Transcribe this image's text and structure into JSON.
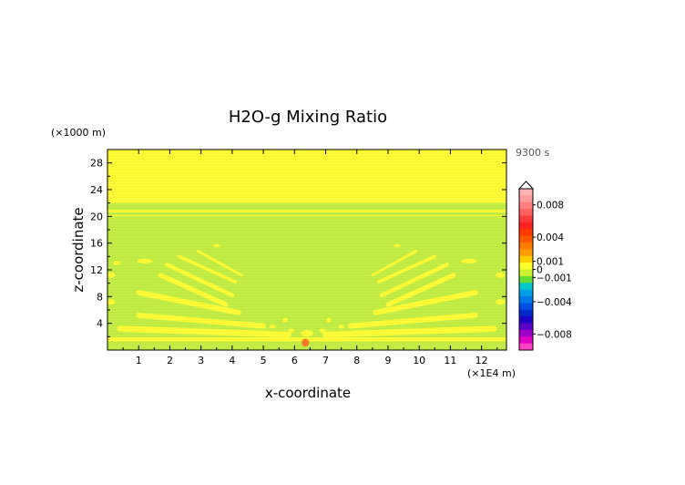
{
  "chart_data": {
    "type": "heatmap",
    "title": "H2O-g Mixing Ratio",
    "xlabel": "x-coordinate",
    "ylabel": "z-coordinate",
    "x_unit": "(×1E4 m)",
    "y_unit": "(×1000 m)",
    "time_label": "9300 s",
    "xlim": [
      0,
      12.8
    ],
    "ylim": [
      0,
      30
    ],
    "x_ticks": [
      "1",
      "2",
      "3",
      "4",
      "5",
      "6",
      "7",
      "8",
      "9",
      "10",
      "11",
      "12"
    ],
    "y_ticks": [
      "4",
      "8",
      "12",
      "16",
      "20",
      "24",
      "28"
    ],
    "colorbar": {
      "tick_labels": [
        "0.008",
        "0.004",
        "0.001",
        "0",
        "−0.001",
        "−0.004",
        "−0.008"
      ],
      "tick_values": [
        0.008,
        0.004,
        0.001,
        0,
        -0.001,
        -0.004,
        -0.008
      ],
      "range": [
        -0.01,
        0.01
      ],
      "levels": [
        {
          "value": 0.0095,
          "color": "#ffb3b3"
        },
        {
          "value": 0.0085,
          "color": "#ff9d9d"
        },
        {
          "value": 0.0075,
          "color": "#ff7f7f"
        },
        {
          "value": 0.0065,
          "color": "#ff6060"
        },
        {
          "value": 0.0055,
          "color": "#ff3a3a"
        },
        {
          "value": 0.0045,
          "color": "#ff2020"
        },
        {
          "value": 0.0035,
          "color": "#ff3b00"
        },
        {
          "value": 0.0025,
          "color": "#ff5a00"
        },
        {
          "value": 0.0017,
          "color": "#ff7a00"
        },
        {
          "value": 0.0012,
          "color": "#ff9c00"
        },
        {
          "value": 0.0007,
          "color": "#ffd000"
        },
        {
          "value": 0.0002,
          "color": "#ffff30"
        },
        {
          "value": -0.0002,
          "color": "#ccf230"
        },
        {
          "value": -0.0007,
          "color": "#66dd33"
        },
        {
          "value": -0.0012,
          "color": "#00c8c8"
        },
        {
          "value": -0.0017,
          "color": "#009ee6"
        },
        {
          "value": -0.0025,
          "color": "#007ae6"
        },
        {
          "value": -0.0035,
          "color": "#0050e6"
        },
        {
          "value": -0.0045,
          "color": "#0028c8"
        },
        {
          "value": -0.0055,
          "color": "#1a00c8"
        },
        {
          "value": -0.0065,
          "color": "#5a00c8"
        },
        {
          "value": -0.0075,
          "color": "#a000c8"
        },
        {
          "value": -0.0085,
          "color": "#e000c8"
        },
        {
          "value": -0.0095,
          "color": "#ff40c0"
        }
      ]
    },
    "field_colors": {
      "background": "#c2ee45",
      "positive": "#fffc35",
      "peak": "#ff7a2a"
    },
    "field_regions": [
      {
        "kind": "positive",
        "x": [
          0.0,
          12.8
        ],
        "z": [
          22.0,
          30.0
        ]
      },
      {
        "kind": "positive",
        "x": [
          0.0,
          12.8
        ],
        "z": [
          20.6,
          21.0
        ]
      },
      {
        "kind": "positive",
        "x": [
          0.0,
          12.8
        ],
        "z": [
          1.3,
          1.9
        ]
      },
      {
        "kind": "positive",
        "x": [
          0.0,
          12.8
        ],
        "z": [
          20.0,
          20.2
        ]
      }
    ],
    "positive_streaks": [
      {
        "x0": 0.4,
        "z0": 3.2,
        "x1": 5.8,
        "z1": 2.3,
        "w": 0.9
      },
      {
        "x0": 1.0,
        "z0": 5.2,
        "x1": 5.0,
        "z1": 3.6,
        "w": 0.8
      },
      {
        "x0": 1.0,
        "z0": 8.6,
        "x1": 4.2,
        "z1": 5.6,
        "w": 0.8
      },
      {
        "x0": 1.7,
        "z0": 11.2,
        "x1": 3.8,
        "z1": 6.8,
        "w": 0.7
      },
      {
        "x0": 1.9,
        "z0": 12.8,
        "x1": 4.0,
        "z1": 8.2,
        "w": 0.6
      },
      {
        "x0": 2.3,
        "z0": 14.0,
        "x1": 4.1,
        "z1": 10.2,
        "w": 0.5
      },
      {
        "x0": 2.9,
        "z0": 14.8,
        "x1": 4.3,
        "z1": 11.2,
        "w": 0.4
      },
      {
        "x0": 12.4,
        "z0": 3.2,
        "x1": 7.0,
        "z1": 2.3,
        "w": 0.9
      },
      {
        "x0": 11.8,
        "z0": 5.2,
        "x1": 7.8,
        "z1": 3.6,
        "w": 0.8
      },
      {
        "x0": 11.8,
        "z0": 8.6,
        "x1": 8.6,
        "z1": 5.6,
        "w": 0.8
      },
      {
        "x0": 11.1,
        "z0": 11.2,
        "x1": 9.0,
        "z1": 6.8,
        "w": 0.7
      },
      {
        "x0": 10.9,
        "z0": 12.8,
        "x1": 8.8,
        "z1": 8.2,
        "w": 0.6
      },
      {
        "x0": 10.5,
        "z0": 14.0,
        "x1": 8.7,
        "z1": 10.2,
        "w": 0.5
      },
      {
        "x0": 9.9,
        "z0": 14.8,
        "x1": 8.5,
        "z1": 11.2,
        "w": 0.4
      }
    ],
    "positive_blobs": [
      {
        "x": 0.1,
        "z": 11.2,
        "rx": 0.15,
        "rz": 0.4
      },
      {
        "x": 12.6,
        "z": 11.2,
        "rx": 0.15,
        "rz": 0.4
      },
      {
        "x": 0.3,
        "z": 13.0,
        "rx": 0.12,
        "rz": 0.3
      },
      {
        "x": 0.1,
        "z": 7.2,
        "rx": 0.15,
        "rz": 0.4
      },
      {
        "x": 12.6,
        "z": 7.2,
        "rx": 0.15,
        "rz": 0.4
      },
      {
        "x": 1.2,
        "z": 13.3,
        "rx": 0.25,
        "rz": 0.35
      },
      {
        "x": 11.6,
        "z": 13.3,
        "rx": 0.25,
        "rz": 0.35
      },
      {
        "x": 6.4,
        "z": 2.5,
        "rx": 0.2,
        "rz": 0.5
      },
      {
        "x": 5.7,
        "z": 4.5,
        "rx": 0.08,
        "rz": 0.35
      },
      {
        "x": 7.1,
        "z": 4.5,
        "rx": 0.08,
        "rz": 0.35
      },
      {
        "x": 5.3,
        "z": 3.5,
        "rx": 0.1,
        "rz": 0.3
      },
      {
        "x": 7.5,
        "z": 3.5,
        "rx": 0.1,
        "rz": 0.3
      },
      {
        "x": 5.9,
        "z": 2.9,
        "rx": 0.1,
        "rz": 0.3
      },
      {
        "x": 6.9,
        "z": 2.9,
        "rx": 0.1,
        "rz": 0.3
      },
      {
        "x": 3.5,
        "z": 15.6,
        "rx": 0.1,
        "rz": 0.25
      },
      {
        "x": 9.3,
        "z": 15.6,
        "rx": 0.1,
        "rz": 0.25
      }
    ],
    "peak_blobs": [
      {
        "x": 6.35,
        "z": 1.1,
        "rx": 0.12,
        "rz": 0.6
      }
    ]
  }
}
